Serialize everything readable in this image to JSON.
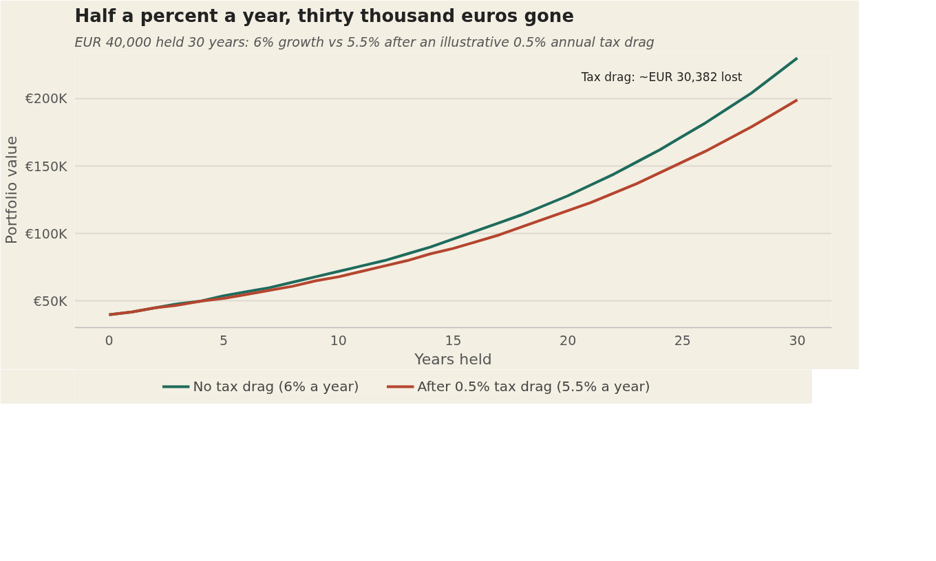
{
  "chart_data": {
    "type": "line",
    "title": "Half a percent a year, thirty thousand euros gone",
    "subtitle": "EUR 40,000 held 30 years: 6% growth vs 5.5% after an illustrative 0.5% annual tax drag",
    "xlabel": "Years held",
    "ylabel": "Portfolio value",
    "x": [
      0,
      1,
      2,
      3,
      4,
      5,
      6,
      7,
      8,
      9,
      10,
      11,
      12,
      13,
      14,
      15,
      16,
      17,
      18,
      19,
      20,
      21,
      22,
      23,
      24,
      25,
      26,
      27,
      28,
      29,
      30
    ],
    "series": [
      {
        "name": "No tax drag (6% a year)",
        "color": "#1e6b5c",
        "values": [
          40000,
          42000,
          45000,
          48000,
          50000,
          54000,
          57000,
          60000,
          64000,
          68000,
          72000,
          76000,
          80000,
          85000,
          90000,
          96000,
          102000,
          108000,
          114000,
          121000,
          128000,
          136000,
          144000,
          153000,
          162000,
          172000,
          182000,
          193000,
          204000,
          217000,
          230000
        ]
      },
      {
        "name": "After 0.5% tax drag (5.5% a year)",
        "color": "#b5452e",
        "values": [
          40000,
          42000,
          45000,
          47000,
          50000,
          52000,
          55000,
          58000,
          61000,
          65000,
          68000,
          72000,
          76000,
          80000,
          85000,
          89000,
          94000,
          99000,
          105000,
          111000,
          117000,
          123000,
          130000,
          137000,
          145000,
          153000,
          161000,
          170000,
          179000,
          189000,
          199000
        ]
      }
    ],
    "xlim": [
      -1.5,
      31.5
    ],
    "xticks": [
      0,
      5,
      10,
      15,
      20,
      25,
      30
    ],
    "ylim": [
      30400,
      234000
    ],
    "yticks": [
      {
        "value": 50000,
        "label": "€50K"
      },
      {
        "value": 100000,
        "label": "€100K"
      },
      {
        "value": 150000,
        "label": "€150K"
      },
      {
        "value": 200000,
        "label": "€200K"
      }
    ],
    "grid": "y",
    "legend": "bottom",
    "marker": "none",
    "line_style": "solid",
    "annotations": [
      "Tax drag: ~EUR 30,382 lost"
    ]
  }
}
